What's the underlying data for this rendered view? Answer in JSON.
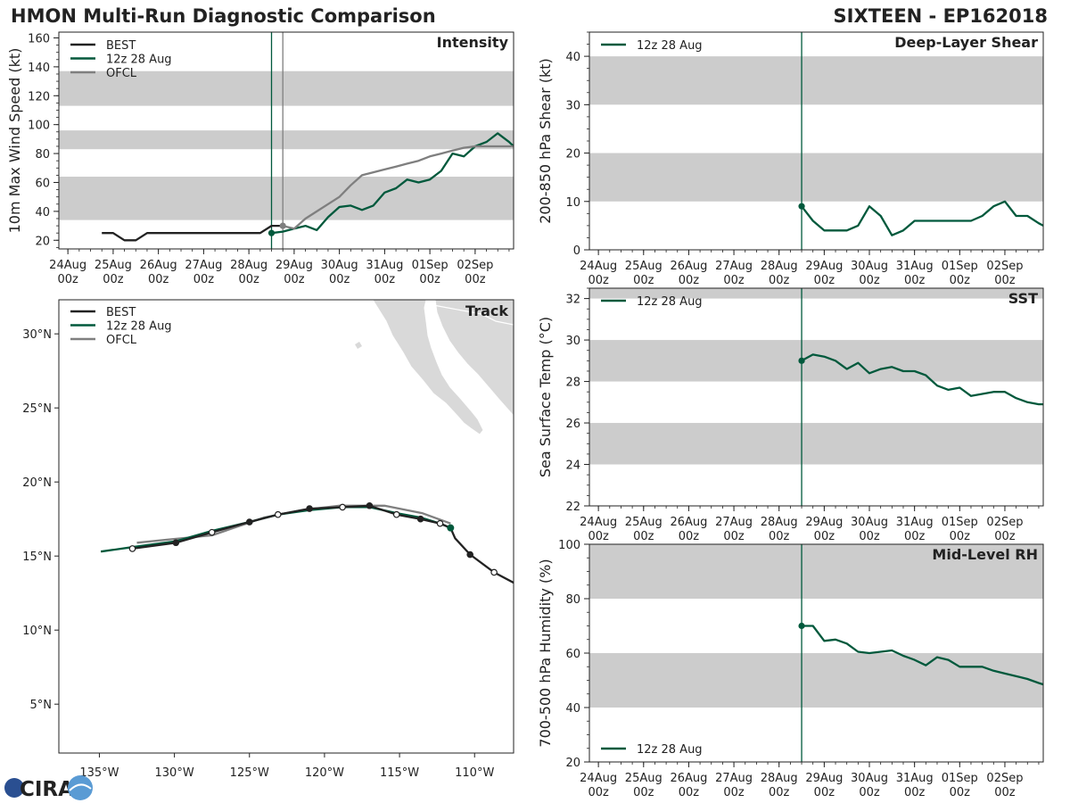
{
  "header": {
    "title": "HMON Multi-Run Diagnostic Comparison",
    "storm": "SIXTEEN - EP162018"
  },
  "logo": {
    "text": "CIRA"
  },
  "colors": {
    "best": "#222222",
    "run": "#00593c",
    "ofcl": "#7f7f7f",
    "band": "#cccccc",
    "land": "#d9d9d9",
    "axis": "#222222"
  },
  "series_labels": {
    "best": "BEST",
    "run": "12z 28 Aug",
    "ofcl": "OFCL"
  },
  "chart_data": [
    {
      "id": "intensity",
      "type": "line",
      "title": "Intensity",
      "ylabel": "10m Max Wind Speed (kt)",
      "xlabel": "",
      "xlim": [
        -0.2,
        9.85
      ],
      "ylim": [
        14,
        164
      ],
      "yticks": [
        20,
        40,
        60,
        80,
        100,
        120,
        140,
        160
      ],
      "xticks": [
        0,
        1,
        2,
        3,
        4,
        5,
        6,
        7,
        8,
        9
      ],
      "xtick_labels": [
        [
          "24Aug",
          "00z"
        ],
        [
          "25Aug",
          "00z"
        ],
        [
          "26Aug",
          "00z"
        ],
        [
          "27Aug",
          "00z"
        ],
        [
          "28Aug",
          "00z"
        ],
        [
          "29Aug",
          "00z"
        ],
        [
          "30Aug",
          "00z"
        ],
        [
          "31Aug",
          "00z"
        ],
        [
          "01Sep",
          "00z"
        ],
        [
          "02Sep",
          "00z"
        ]
      ],
      "bands": [
        [
          34,
          64
        ],
        [
          83,
          96
        ],
        [
          113,
          137
        ]
      ],
      "vlines": [
        {
          "x": 4.5,
          "series": "run"
        },
        {
          "x": 4.75,
          "series": "ofcl"
        }
      ],
      "legend": [
        "best",
        "run",
        "ofcl"
      ],
      "series": [
        {
          "name": "best",
          "x": [
            0.75,
            1.0,
            1.25,
            1.5,
            1.75,
            2.0,
            2.25,
            2.5,
            2.75,
            3.0,
            3.25,
            3.5,
            3.75,
            4.0,
            4.25,
            4.5,
            4.75
          ],
          "y": [
            25,
            25,
            20,
            20,
            25,
            25,
            25,
            25,
            25,
            25,
            25,
            25,
            25,
            25,
            25,
            30,
            30
          ]
        },
        {
          "name": "run",
          "x": [
            4.5,
            4.75,
            5.0,
            5.25,
            5.5,
            5.75,
            6.0,
            6.25,
            6.5,
            6.75,
            7.0,
            7.25,
            7.5,
            7.75,
            8.0,
            8.25,
            8.5,
            8.75,
            9.0,
            9.25,
            9.5,
            9.75,
            9.85
          ],
          "y": [
            25,
            26,
            28,
            30,
            27,
            36,
            43,
            44,
            41,
            44,
            53,
            56,
            62,
            60,
            62,
            68,
            80,
            78,
            85,
            88,
            94,
            88,
            85
          ],
          "first_marker": true
        },
        {
          "name": "ofcl",
          "x": [
            4.75,
            5.0,
            5.25,
            5.5,
            5.75,
            6.0,
            6.25,
            6.5,
            6.75,
            7.0,
            7.25,
            7.5,
            7.75,
            8.0,
            8.25,
            8.5,
            8.75,
            9.0,
            9.25,
            9.5,
            9.75,
            9.85
          ],
          "y": [
            30,
            28,
            35,
            40,
            45,
            50,
            58,
            65,
            67,
            69,
            71,
            73,
            75,
            78,
            80,
            82,
            84,
            85,
            85,
            85,
            85,
            85
          ],
          "first_marker": true
        }
      ]
    },
    {
      "id": "shear",
      "type": "line",
      "title": "Deep-Layer Shear",
      "ylabel": "200-850 hPa Shear (kt)",
      "xlabel": "",
      "xlim": [
        -0.2,
        9.85
      ],
      "ylim": [
        0,
        45
      ],
      "yticks": [
        0,
        10,
        20,
        30,
        40
      ],
      "xticks": [
        0,
        1,
        2,
        3,
        4,
        5,
        6,
        7,
        8,
        9
      ],
      "xtick_labels": [
        [
          "24Aug",
          "00z"
        ],
        [
          "25Aug",
          "00z"
        ],
        [
          "26Aug",
          "00z"
        ],
        [
          "27Aug",
          "00z"
        ],
        [
          "28Aug",
          "00z"
        ],
        [
          "29Aug",
          "00z"
        ],
        [
          "30Aug",
          "00z"
        ],
        [
          "31Aug",
          "00z"
        ],
        [
          "01Sep",
          "00z"
        ],
        [
          "02Sep",
          "00z"
        ]
      ],
      "bands": [
        [
          10,
          20
        ],
        [
          30,
          40
        ]
      ],
      "vlines": [
        {
          "x": 4.5,
          "series": "run"
        }
      ],
      "legend": [
        "run"
      ],
      "series": [
        {
          "name": "run",
          "x": [
            4.5,
            4.75,
            5.0,
            5.25,
            5.5,
            5.75,
            6.0,
            6.25,
            6.5,
            6.75,
            7.0,
            7.25,
            7.5,
            7.75,
            8.0,
            8.25,
            8.5,
            8.75,
            9.0,
            9.25,
            9.5,
            9.75,
            9.85
          ],
          "y": [
            9,
            6,
            4,
            4,
            4,
            5,
            9,
            7,
            3,
            4,
            6,
            6,
            6,
            6,
            6,
            6,
            7,
            9,
            10,
            7,
            7,
            5.5,
            5
          ],
          "first_marker": true
        }
      ]
    },
    {
      "id": "sst",
      "type": "line",
      "title": "SST",
      "ylabel": "Sea Surface Temp (°C)",
      "xlabel": "",
      "xlim": [
        -0.2,
        9.85
      ],
      "ylim": [
        22,
        32.5
      ],
      "yticks": [
        22,
        24,
        26,
        28,
        30,
        32
      ],
      "xticks": [
        0,
        1,
        2,
        3,
        4,
        5,
        6,
        7,
        8,
        9
      ],
      "xtick_labels": [
        [
          "24Aug",
          "00z"
        ],
        [
          "25Aug",
          "00z"
        ],
        [
          "26Aug",
          "00z"
        ],
        [
          "27Aug",
          "00z"
        ],
        [
          "28Aug",
          "00z"
        ],
        [
          "29Aug",
          "00z"
        ],
        [
          "30Aug",
          "00z"
        ],
        [
          "31Aug",
          "00z"
        ],
        [
          "01Sep",
          "00z"
        ],
        [
          "02Sep",
          "00z"
        ]
      ],
      "bands": [
        [
          24,
          26
        ],
        [
          28,
          30
        ],
        [
          32,
          34
        ]
      ],
      "vlines": [
        {
          "x": 4.5,
          "series": "run"
        }
      ],
      "legend": [
        "run"
      ],
      "series": [
        {
          "name": "run",
          "x": [
            4.5,
            4.75,
            5.0,
            5.25,
            5.5,
            5.75,
            6.0,
            6.25,
            6.5,
            6.75,
            7.0,
            7.25,
            7.5,
            7.75,
            8.0,
            8.25,
            8.5,
            8.75,
            9.0,
            9.25,
            9.5,
            9.75,
            9.85
          ],
          "y": [
            29.0,
            29.3,
            29.2,
            29.0,
            28.6,
            28.9,
            28.4,
            28.6,
            28.7,
            28.5,
            28.5,
            28.3,
            27.8,
            27.6,
            27.7,
            27.3,
            27.4,
            27.5,
            27.5,
            27.2,
            27.0,
            26.9,
            26.9
          ],
          "first_marker": true
        }
      ]
    },
    {
      "id": "rh",
      "type": "line",
      "title": "Mid-Level RH",
      "ylabel": "700-500 hPa Humidity (%)",
      "xlabel": "",
      "xlim": [
        -0.2,
        9.85
      ],
      "ylim": [
        20,
        100
      ],
      "yticks": [
        20,
        40,
        60,
        80,
        100
      ],
      "xticks": [
        0,
        1,
        2,
        3,
        4,
        5,
        6,
        7,
        8,
        9
      ],
      "xtick_labels": [
        [
          "24Aug",
          "00z"
        ],
        [
          "25Aug",
          "00z"
        ],
        [
          "26Aug",
          "00z"
        ],
        [
          "27Aug",
          "00z"
        ],
        [
          "28Aug",
          "00z"
        ],
        [
          "29Aug",
          "00z"
        ],
        [
          "30Aug",
          "00z"
        ],
        [
          "31Aug",
          "00z"
        ],
        [
          "01Sep",
          "00z"
        ],
        [
          "02Sep",
          "00z"
        ]
      ],
      "bands": [
        [
          40,
          60
        ],
        [
          80,
          100
        ]
      ],
      "vlines": [
        {
          "x": 4.5,
          "series": "run"
        }
      ],
      "legend": [
        "run"
      ],
      "legend_position": "bottom-left",
      "series": [
        {
          "name": "run",
          "x": [
            4.5,
            4.75,
            5.0,
            5.25,
            5.5,
            5.75,
            6.0,
            6.25,
            6.5,
            6.75,
            7.0,
            7.25,
            7.5,
            7.75,
            8.0,
            8.25,
            8.5,
            8.75,
            9.0,
            9.25,
            9.5,
            9.75,
            9.85
          ],
          "y": [
            70,
            70,
            64.5,
            65,
            63.5,
            60.5,
            60,
            60.5,
            61,
            59,
            57.5,
            55.5,
            58.5,
            57.5,
            55,
            55,
            55,
            53.5,
            52.5,
            51.5,
            50.5,
            49,
            48.5
          ],
          "first_marker": true
        }
      ]
    },
    {
      "id": "track",
      "type": "scatter",
      "title": "Track",
      "xlabel": "",
      "ylabel": "",
      "xlim": [
        -137.7,
        -107.4
      ],
      "ylim": [
        1.7,
        32.3
      ],
      "xticks": [
        -135,
        -130,
        -125,
        -120,
        -115,
        -110
      ],
      "xtick_labels": [
        "135°W",
        "130°W",
        "125°W",
        "120°W",
        "115°W",
        "110°W"
      ],
      "yticks": [
        5,
        10,
        15,
        20,
        25,
        30
      ],
      "ytick_labels": [
        "5°N",
        "10°N",
        "15°N",
        "20°N",
        "25°N",
        "30°N"
      ],
      "legend": [
        "best",
        "run",
        "ofcl"
      ],
      "series": [
        {
          "name": "best",
          "lon": [
            -107.4,
            -108.7,
            -110.3,
            -111.3,
            -111.6,
            -112.3,
            -113.6,
            -115.2,
            -117.0,
            -118.8,
            -121.0,
            -123.1,
            -125.0,
            -127.5,
            -129.9,
            -132.8
          ],
          "lat": [
            13.2,
            13.9,
            15.1,
            16.2,
            16.9,
            17.2,
            17.5,
            17.8,
            18.4,
            18.3,
            18.2,
            17.8,
            17.3,
            16.6,
            15.9,
            15.5
          ],
          "markers": [
            "none",
            "open",
            "filled",
            "none",
            "filled",
            "open",
            "filled",
            "open",
            "filled",
            "open",
            "filled",
            "open",
            "filled",
            "open",
            "filled",
            "open"
          ]
        },
        {
          "name": "ofcl",
          "lon": [
            -111.6,
            -113.5,
            -116.0,
            -119.0,
            -121.5,
            -124.0,
            -127.5,
            -130.5,
            -132.5
          ],
          "lat": [
            17.2,
            17.9,
            18.4,
            18.4,
            18.1,
            17.6,
            16.4,
            16.1,
            15.9
          ]
        },
        {
          "name": "run",
          "lon": [
            -111.6,
            -112.3,
            -113.6,
            -115.2,
            -117.0,
            -118.8,
            -121.0,
            -123.1,
            -125.0,
            -127.5,
            -129.9,
            -132.8,
            -134.9
          ],
          "lat": [
            16.9,
            17.2,
            17.6,
            17.9,
            18.3,
            18.3,
            18.1,
            17.8,
            17.3,
            16.7,
            16.0,
            15.6,
            15.3
          ],
          "first_marker": true
        }
      ]
    }
  ]
}
